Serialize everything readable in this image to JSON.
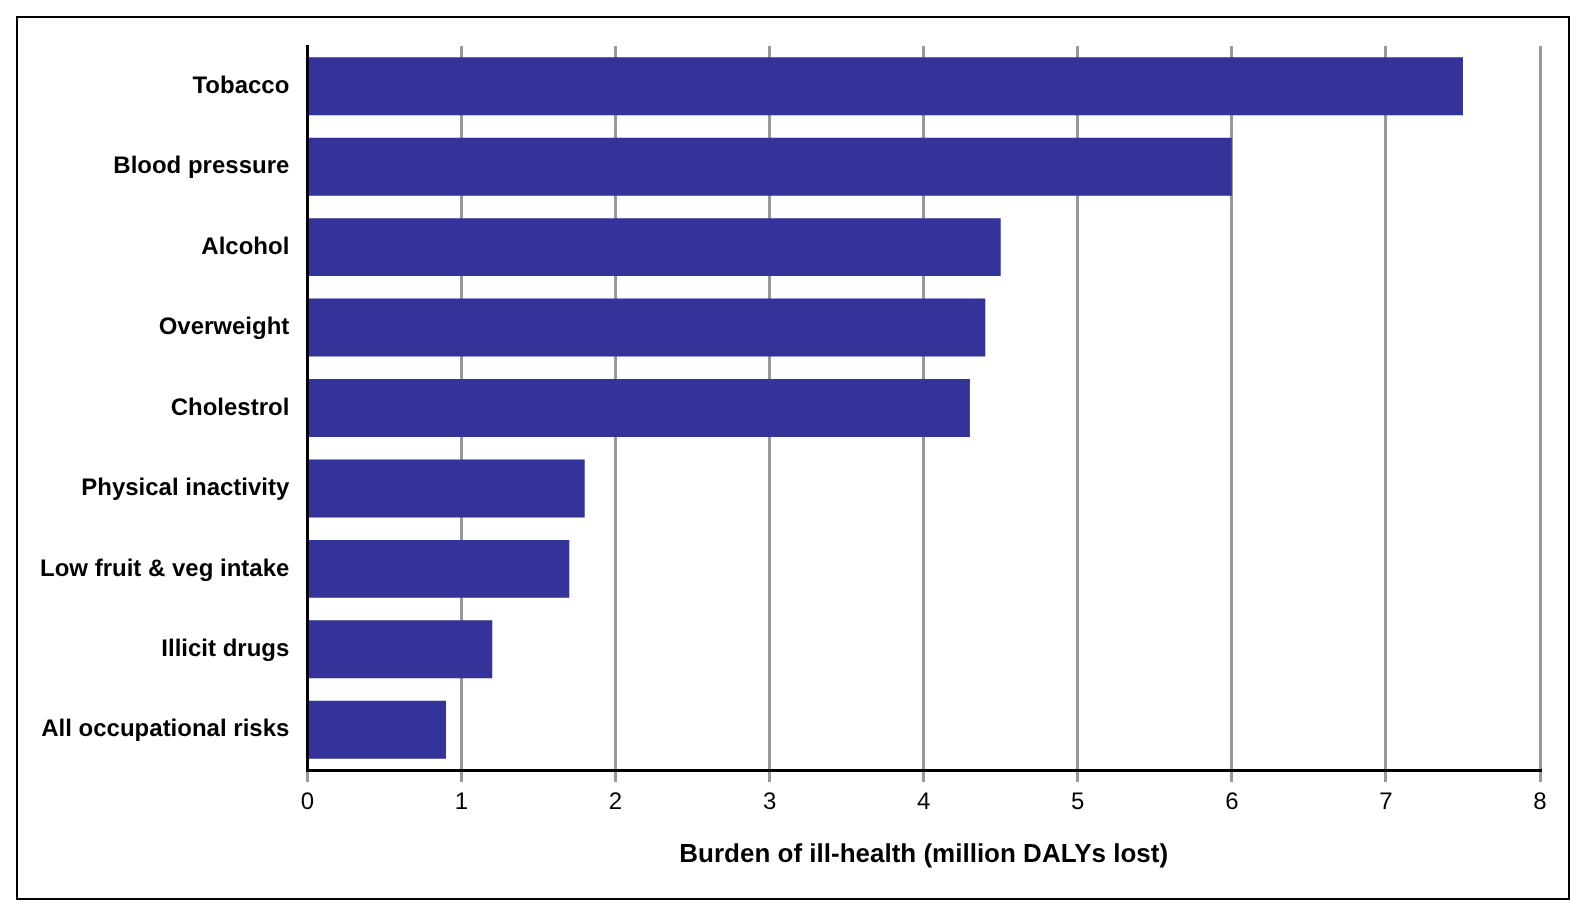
{
  "chart_data": {
    "type": "bar",
    "orientation": "horizontal",
    "xlabel": "Burden of ill-health (million DALYs lost)",
    "categories": [
      "Tobacco",
      "Blood pressure",
      "Alcohol",
      "Overweight",
      "Cholestrol",
      "Physical inactivity",
      "Low fruit & veg intake",
      "Illicit drugs",
      "All occupational risks"
    ],
    "values": [
      7.5,
      6.0,
      4.5,
      4.4,
      4.3,
      1.8,
      1.7,
      1.2,
      0.9
    ],
    "color": "#333399",
    "xlim": [
      0,
      8
    ],
    "xticks": [
      0,
      1,
      2,
      3,
      4,
      5,
      6,
      7,
      8
    ],
    "grid": "x",
    "legend": false
  }
}
